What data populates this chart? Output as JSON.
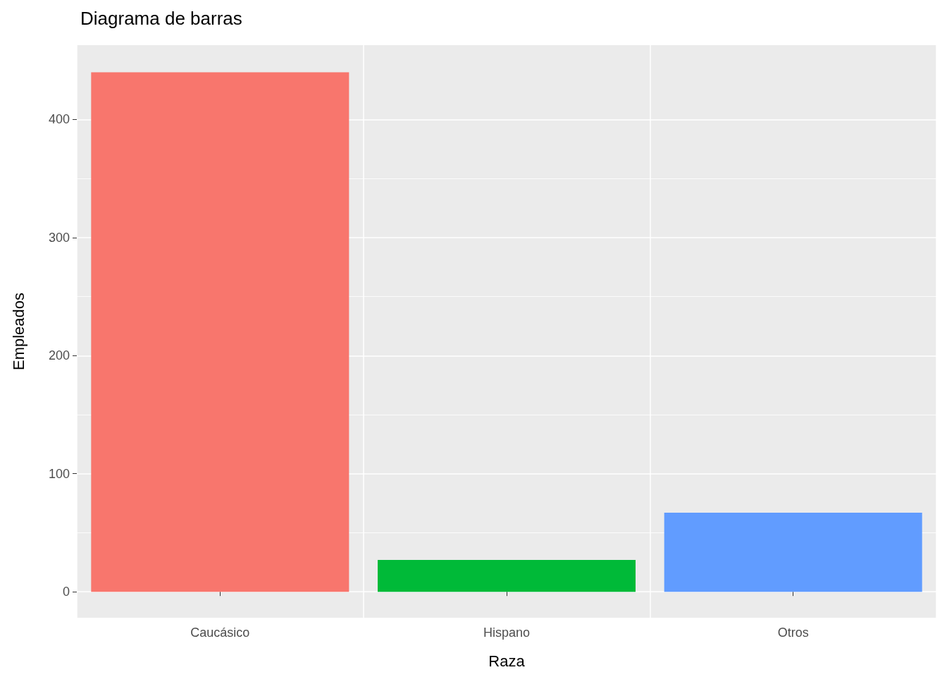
{
  "chart_data": {
    "type": "bar",
    "title": "Diagrama de barras",
    "xlabel": "Raza",
    "ylabel": "Empleados",
    "categories": [
      "Caucásico",
      "Hispano",
      "Otros"
    ],
    "values": [
      440,
      27,
      67
    ],
    "colors": [
      "#f8766d",
      "#00ba38",
      "#619cff"
    ],
    "ylim": [
      -22,
      463
    ],
    "yticks": [
      0,
      100,
      200,
      300,
      400
    ],
    "grid": true
  }
}
